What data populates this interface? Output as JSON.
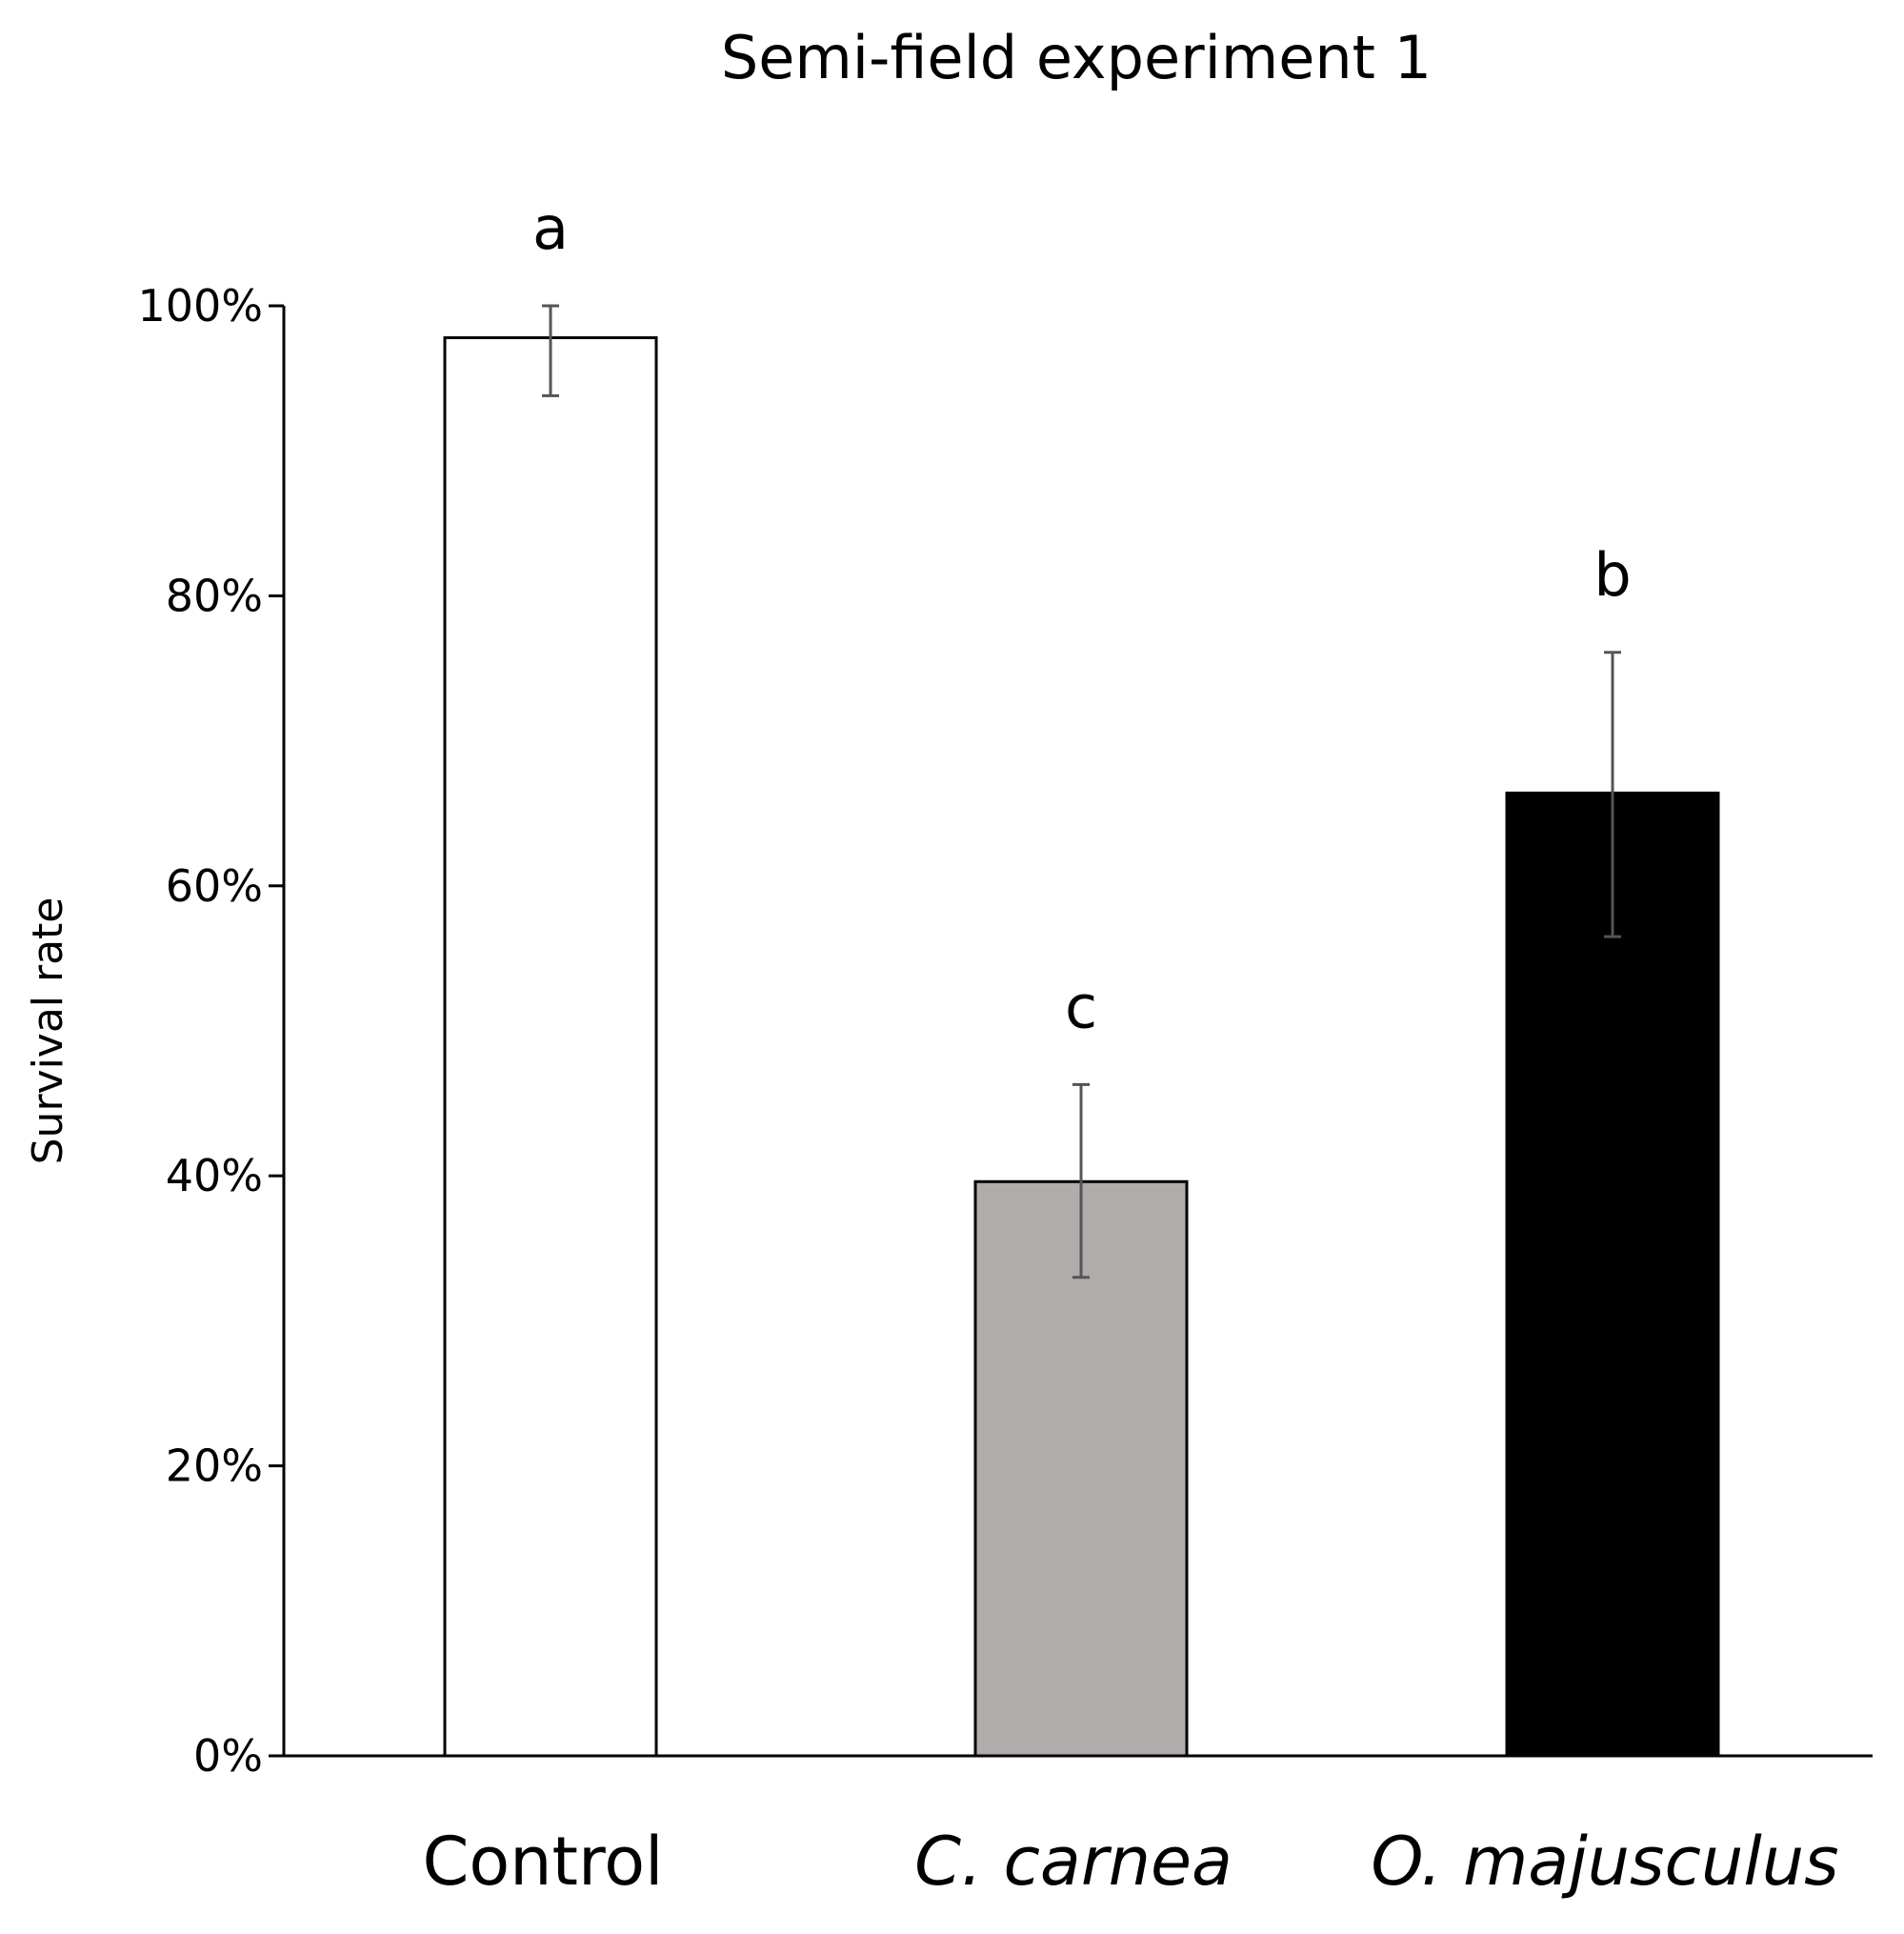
{
  "chart_data": {
    "type": "bar",
    "title": "Semi-field experiment 1",
    "xlabel": "",
    "ylabel": "Survival rate",
    "ylim": [
      0,
      100
    ],
    "yticks": [
      0,
      20,
      40,
      60,
      80,
      100
    ],
    "ytick_labels": [
      "0%",
      "20%",
      "40%",
      "60%",
      "80%",
      "100%"
    ],
    "categories": [
      "Control",
      "C. carnea",
      "O. majusculus"
    ],
    "italic_categories": [
      false,
      true,
      true
    ],
    "values": [
      97.8,
      39.6,
      66.4
    ],
    "error_low": [
      93.8,
      33.0,
      56.5
    ],
    "error_high": [
      100,
      46.3,
      76.1
    ],
    "significance": [
      "a",
      "c",
      "b"
    ],
    "colors": {
      "fills": [
        "#ffffff",
        "#b0acab",
        "#000000"
      ],
      "stroke": "#000000",
      "error_bar": "#555555",
      "axis": "#000000"
    },
    "grid": false
  }
}
